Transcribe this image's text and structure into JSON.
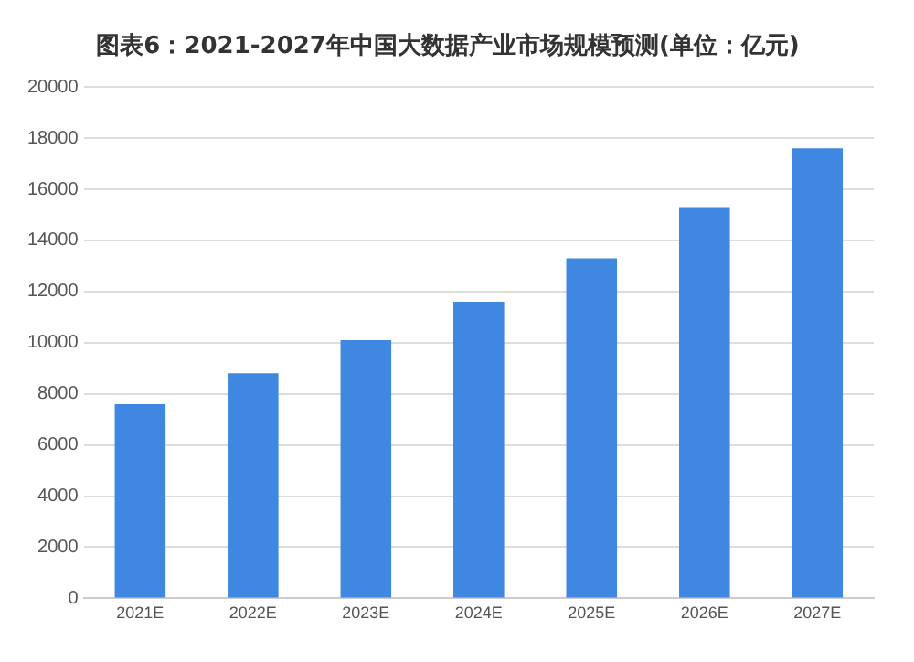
{
  "chart_data": {
    "type": "bar",
    "title": "图表6：2021-2027年中国大数据产业市场规模预测(单位：亿元)",
    "categories": [
      "2021E",
      "2022E",
      "2023E",
      "2024E",
      "2025E",
      "2026E",
      "2027E"
    ],
    "values": [
      7600,
      8800,
      10100,
      11600,
      13300,
      15300,
      17600
    ],
    "color": "#3f87e0",
    "ylim": [
      0,
      20000
    ],
    "yticks": [
      0,
      2000,
      4000,
      6000,
      8000,
      10000,
      12000,
      14000,
      16000,
      18000,
      20000
    ],
    "grid": "y",
    "legend": false
  }
}
